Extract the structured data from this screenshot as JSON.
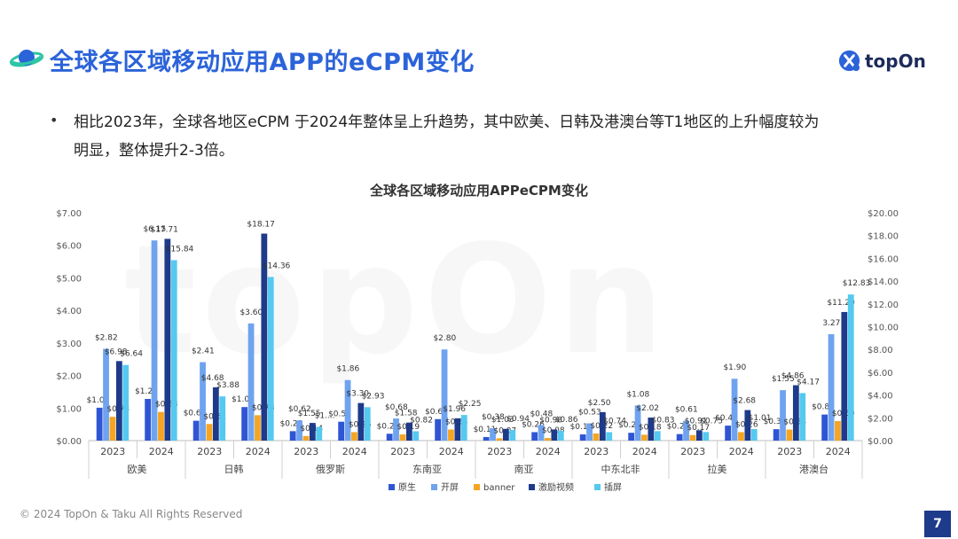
{
  "header": {
    "title": "全球各区域移动应用APP的eCPM变化",
    "brand": "topOn"
  },
  "bullet": {
    "line1": "相比2023年，全球各地区eCPM 于2024年整体呈上升趋势，其中欧美、日韩及港澳台等T1地区的上升幅度较为",
    "line2": "明显，整体提升2-3倍。"
  },
  "watermark": "topOn",
  "footer": {
    "copyright": "© 2024 TopOn & Taku All Rights Reserved",
    "page": "7"
  },
  "colors": {
    "title": "#2b63d9",
    "原生": "#2f55d4",
    "开屏": "#6fa3ef",
    "banner": "#f5a524",
    "激励视频": "#1e3a8a",
    "插屏": "#55c9f0"
  },
  "chart_data": {
    "type": "bar",
    "title": "全球各区域移动应用APPeCPM变化",
    "y_left": {
      "ticks": [
        "$0.00",
        "$1.00",
        "$2.00",
        "$3.00",
        "$4.00",
        "$5.00",
        "$6.00",
        "$7.00"
      ],
      "ylim": [
        0,
        7
      ]
    },
    "y_right": {
      "ticks": [
        "$0.00",
        "$2.00",
        "$4.00",
        "$6.00",
        "$8.00",
        "$10.00",
        "$12.00",
        "$14.00",
        "$16.00",
        "$18.00",
        "$20.00"
      ],
      "ylim": [
        0,
        20
      ]
    },
    "regions": [
      "欧美",
      "日韩",
      "俄罗斯",
      "东南亚",
      "南亚",
      "中东北非",
      "拉美",
      "港澳台"
    ],
    "years": [
      "2023",
      "2024"
    ],
    "legend": [
      "原生",
      "开屏",
      "banner",
      "激励视频",
      "插屏"
    ],
    "legend_position": "bottom",
    "axis_assignment": {
      "原生": "left",
      "开屏": "left",
      "banner": "left",
      "激励视频": "right",
      "插屏": "right"
    },
    "groups": [
      {
        "region": "欧美",
        "year": "2023",
        "values": [
          1.01,
          2.82,
          0.73,
          6.98,
          6.64
        ],
        "labels": [
          "$1.01",
          "$2.82",
          "$0.73",
          "$6.98",
          "$6.64"
        ]
      },
      {
        "region": "欧美",
        "year": "2024",
        "values": [
          1.28,
          6.15,
          0.88,
          17.71,
          15.84
        ],
        "labels": [
          "$1.28",
          "$6.15",
          "$0.88",
          "$17.71",
          "$15.84"
        ]
      },
      {
        "region": "日韩",
        "year": "2023",
        "values": [
          0.61,
          2.41,
          0.51,
          4.68,
          3.88
        ],
        "labels": [
          "$0.61",
          "$2.41",
          "$0.51",
          "$4.68",
          "$3.88"
        ]
      },
      {
        "region": "日韩",
        "year": "2024",
        "values": [
          1.03,
          3.6,
          0.78,
          18.17,
          14.36
        ],
        "labels": [
          "$1.03",
          "$3.60",
          "$0.78",
          "$18.17",
          "$14.36"
        ]
      },
      {
        "region": "俄罗斯",
        "year": "2023",
        "values": [
          0.29,
          0.62,
          0.14,
          1.55,
          1.2
        ],
        "labels": [
          "$0.29",
          "$0.62",
          "$0.14",
          "$1.55",
          "$1...."
        ]
      },
      {
        "region": "俄罗斯",
        "year": "2024",
        "values": [
          0.58,
          1.86,
          0.26,
          3.3,
          2.93
        ],
        "labels": [
          "$0.58",
          "$1.86",
          "$0.26",
          "$3.30",
          "$2.93"
        ]
      },
      {
        "region": "东南亚",
        "year": "2023",
        "values": [
          0.21,
          0.68,
          0.19,
          1.58,
          0.82
        ],
        "labels": [
          "$0.21",
          "$0.68",
          "$0.19",
          "$1.58",
          "$0.82"
        ]
      },
      {
        "region": "东南亚",
        "year": "2024",
        "values": [
          0.66,
          2.8,
          0.34,
          1.96,
          2.25
        ],
        "labels": [
          "$0.66",
          "$2.80",
          "$0.34",
          "$1.96",
          "$2.25"
        ]
      },
      {
        "region": "南亚",
        "year": "2023",
        "values": [
          0.11,
          0.38,
          0.07,
          1.03,
          0.94
        ],
        "labels": [
          "$0.11",
          "$0.38",
          "$0.07",
          "$1.03",
          "$0.94"
        ]
      },
      {
        "region": "南亚",
        "year": "2024",
        "values": [
          0.26,
          0.48,
          0.08,
          0.98,
          0.86
        ],
        "labels": [
          "$0.26",
          "$0.48",
          "$0.08",
          "$0.98",
          "$0.86"
        ]
      },
      {
        "region": "中东北非",
        "year": "2023",
        "values": [
          0.19,
          0.53,
          0.22,
          2.5,
          0.74
        ],
        "labels": [
          "$0.19",
          "$0.53",
          "$0.22",
          "$2.50",
          "$0.74"
        ]
      },
      {
        "region": "中东北非",
        "year": "2024",
        "values": [
          0.24,
          1.08,
          0.18,
          2.02,
          0.83
        ],
        "labels": [
          "$0.24",
          "$1.08",
          "$0.18",
          "$2.02",
          "$0.83"
        ]
      },
      {
        "region": "拉美",
        "year": "2023",
        "values": [
          0.2,
          0.61,
          0.17,
          0.91,
          0.75
        ],
        "labels": [
          "$0.20",
          "$0.61",
          "$0.17",
          "$0.91",
          "$0.75"
        ]
      },
      {
        "region": "拉美",
        "year": "2024",
        "values": [
          0.46,
          1.9,
          0.26,
          2.68,
          1.01
        ],
        "labels": [
          "$0.46",
          "$1.90",
          "$0.26",
          "$2.68",
          "$1.01"
        ]
      },
      {
        "region": "港澳台",
        "year": "2023",
        "values": [
          0.35,
          1.55,
          0.34,
          4.86,
          4.17
        ],
        "labels": [
          "$0.35",
          "$1.55",
          "$0.34",
          "$4.86",
          "$4.17"
        ]
      },
      {
        "region": "港澳台",
        "year": "2024",
        "values": [
          0.8,
          3.27,
          0.6,
          11.29,
          12.83
        ],
        "labels": [
          "$0.80",
          "3.27",
          "$0.60",
          "$11.29",
          "$12.83"
        ]
      }
    ]
  }
}
